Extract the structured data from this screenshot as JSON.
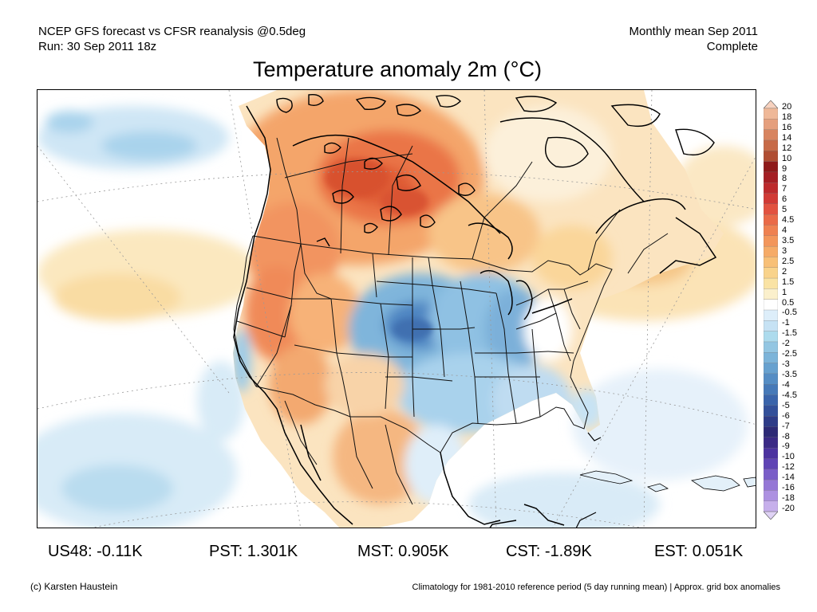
{
  "header": {
    "line1_left": "NCEP GFS forecast vs CFSR reanalysis @0.5deg",
    "line2_left": "Run: 30 Sep 2011 18z",
    "line1_right": "Monthly mean Sep 2011",
    "line2_right": "Complete"
  },
  "title": "Temperature anomaly 2m (°C)",
  "colorbar": {
    "labels": [
      "20",
      "18",
      "16",
      "14",
      "12",
      "10",
      "9",
      "8",
      "7",
      "6",
      "5",
      "4.5",
      "4",
      "3.5",
      "3",
      "2.5",
      "2",
      "1.5",
      "1",
      "0.5",
      "-0.5",
      "-1",
      "-1.5",
      "-2",
      "-2.5",
      "-3",
      "-3.5",
      "-4",
      "-4.5",
      "-5",
      "-6",
      "-7",
      "-8",
      "-9",
      "-10",
      "-12",
      "-14",
      "-16",
      "-18",
      "-20"
    ],
    "colors": [
      "#f7d2bf",
      "#efb898",
      "#e59f7d",
      "#d8845f",
      "#c76a47",
      "#b04e33",
      "#8f1a1a",
      "#a51f24",
      "#bd2a2c",
      "#d13a35",
      "#e25240",
      "#ea6a48",
      "#ef8151",
      "#f3965b",
      "#f6ab67",
      "#f8c077",
      "#f9d38b",
      "#fae3a4",
      "#fbf0cc",
      "#ffffff",
      "#ddeefa",
      "#c6e2f4",
      "#addbed",
      "#93c6e2",
      "#7cb4d9",
      "#67a1cf",
      "#558dc4",
      "#4679b8",
      "#3a64ab",
      "#33509a",
      "#2e3c88",
      "#2d2a76",
      "#3b2a86",
      "#4c33a0",
      "#5f44b5",
      "#7a5ec8",
      "#9577d6",
      "#ad91e1",
      "#c6afeb",
      "#dfd2f5"
    ]
  },
  "stats": [
    {
      "label": "US48: -0.11K"
    },
    {
      "label": "PST: 1.301K"
    },
    {
      "label": "MST: 0.905K"
    },
    {
      "label": "CST: -1.89K"
    },
    {
      "label": "EST: 0.051K"
    }
  ],
  "footer": {
    "credit": "(c) Karsten Haustein",
    "note": "Climatology for 1981-2010 reference period (5 day running mean) | Approx. grid box anomalies"
  }
}
